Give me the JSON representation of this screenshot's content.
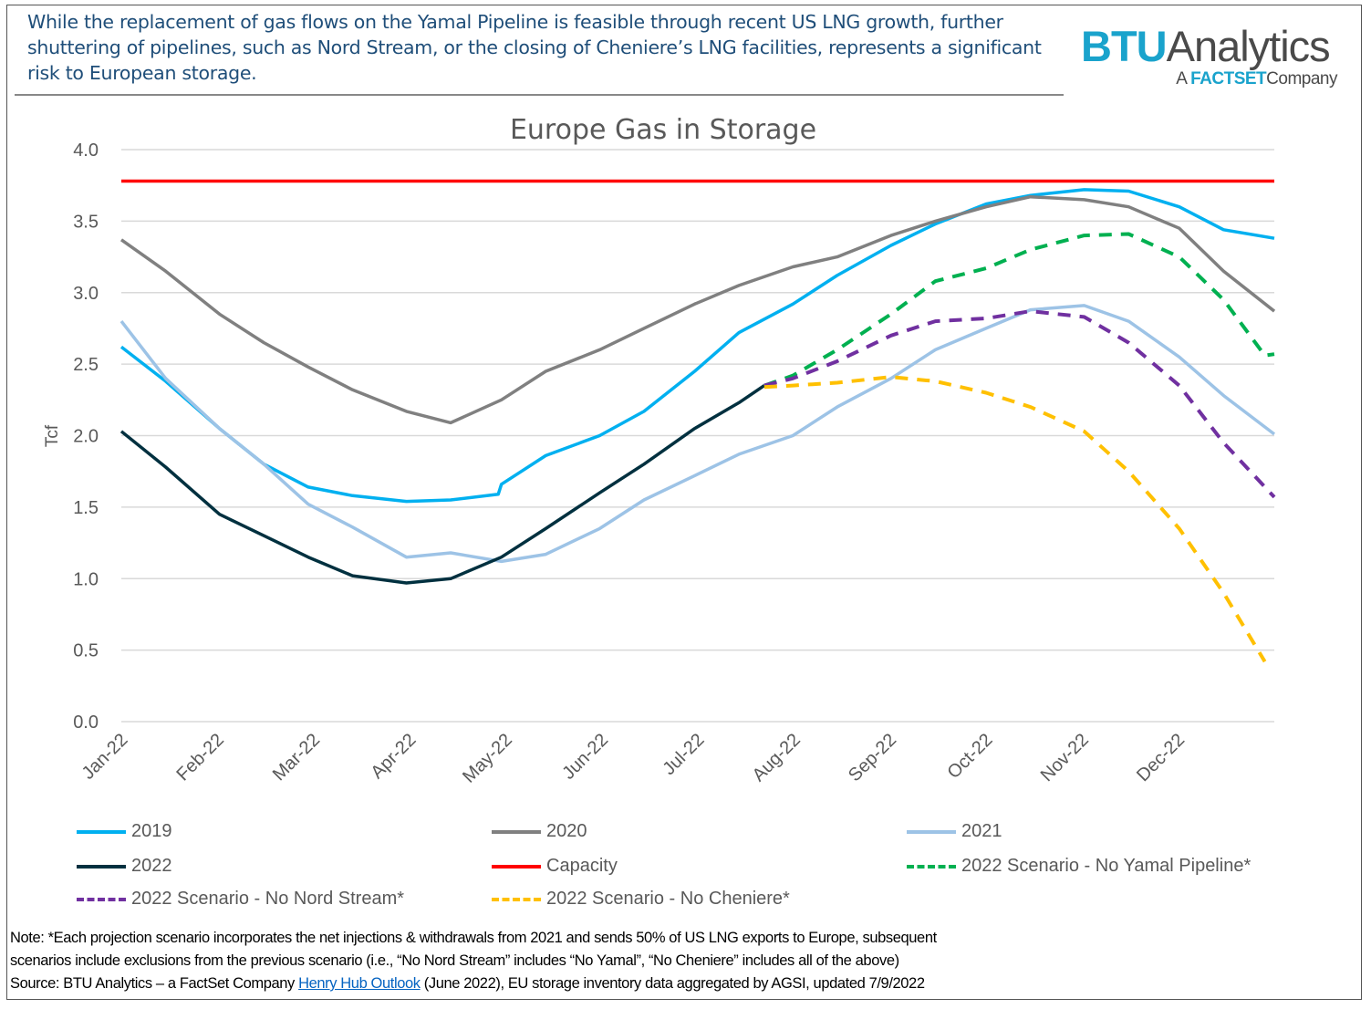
{
  "headline": "While the replacement of gas flows on the Yamal Pipeline is feasible through recent US LNG growth, further shuttering of pipelines, such as Nord Stream, or the closing of Cheniere’s LNG facilities, represents a significant risk to European storage.",
  "logo": {
    "btu": "BTU",
    "analytics": "Analytics",
    "prefix": "A",
    "factset": "FACTSET",
    "company": "Company"
  },
  "chart_data": {
    "type": "line",
    "title": "Europe Gas in Storage",
    "ylabel": "Tcf",
    "xlabel": "",
    "ylim": [
      0,
      4.0
    ],
    "yticks": [
      "0.0",
      "0.5",
      "1.0",
      "1.5",
      "2.0",
      "2.5",
      "3.0",
      "3.5",
      "4.0"
    ],
    "xticks": [
      "Jan-22",
      "Feb-22",
      "Mar-22",
      "Apr-22",
      "May-22",
      "Jun-22",
      "Jul-22",
      "Aug-22",
      "Sep-22",
      "Oct-22",
      "Nov-22",
      "Dec-22"
    ],
    "grid": "horizontal",
    "legend_placement": "bottom",
    "series": [
      {
        "name": "2019",
        "color": "#00b0f0",
        "dash": false,
        "x": [
          "2022-01-01",
          "2022-01-15",
          "2022-02-01",
          "2022-02-15",
          "2022-03-01",
          "2022-03-15",
          "2022-04-01",
          "2022-04-15",
          "2022-04-30",
          "2022-05-01",
          "2022-05-15",
          "2022-06-01",
          "2022-06-15",
          "2022-07-01",
          "2022-07-15",
          "2022-08-01",
          "2022-08-15",
          "2022-09-01",
          "2022-09-15",
          "2022-10-01",
          "2022-10-15",
          "2022-11-01",
          "2022-11-15",
          "2022-12-01",
          "2022-12-15",
          "2022-12-31"
        ],
        "y": [
          2.62,
          2.38,
          2.05,
          1.8,
          1.64,
          1.58,
          1.54,
          1.55,
          1.59,
          1.66,
          1.86,
          2.0,
          2.17,
          2.45,
          2.72,
          2.92,
          3.12,
          3.33,
          3.48,
          3.62,
          3.68,
          3.72,
          3.71,
          3.6,
          3.44,
          3.38
        ]
      },
      {
        "name": "2020",
        "color": "#808080",
        "dash": false,
        "x": [
          "2022-01-01",
          "2022-01-15",
          "2022-02-01",
          "2022-02-15",
          "2022-03-01",
          "2022-03-15",
          "2022-04-01",
          "2022-04-15",
          "2022-05-01",
          "2022-05-15",
          "2022-06-01",
          "2022-06-15",
          "2022-07-01",
          "2022-07-15",
          "2022-08-01",
          "2022-08-15",
          "2022-09-01",
          "2022-09-15",
          "2022-10-01",
          "2022-10-15",
          "2022-11-01",
          "2022-11-15",
          "2022-12-01",
          "2022-12-15",
          "2022-12-31"
        ],
        "y": [
          3.37,
          3.15,
          2.85,
          2.65,
          2.48,
          2.32,
          2.17,
          2.09,
          2.25,
          2.45,
          2.6,
          2.75,
          2.92,
          3.05,
          3.18,
          3.25,
          3.4,
          3.5,
          3.6,
          3.67,
          3.65,
          3.6,
          3.45,
          3.15,
          2.87
        ]
      },
      {
        "name": "2021",
        "color": "#9dc3e6",
        "dash": false,
        "x": [
          "2022-01-01",
          "2022-01-15",
          "2022-02-01",
          "2022-02-15",
          "2022-03-01",
          "2022-03-15",
          "2022-04-01",
          "2022-04-15",
          "2022-05-01",
          "2022-05-15",
          "2022-06-01",
          "2022-06-15",
          "2022-07-01",
          "2022-07-15",
          "2022-08-01",
          "2022-08-15",
          "2022-09-01",
          "2022-09-15",
          "2022-10-01",
          "2022-10-15",
          "2022-11-01",
          "2022-11-15",
          "2022-12-01",
          "2022-12-15",
          "2022-12-31"
        ],
        "y": [
          2.8,
          2.4,
          2.05,
          1.8,
          1.52,
          1.36,
          1.15,
          1.18,
          1.12,
          1.17,
          1.35,
          1.55,
          1.72,
          1.87,
          2.0,
          2.2,
          2.4,
          2.6,
          2.75,
          2.88,
          2.91,
          2.8,
          2.55,
          2.28,
          2.01
        ]
      },
      {
        "name": "2022",
        "color": "#00303f",
        "dash": false,
        "x": [
          "2022-01-01",
          "2022-01-15",
          "2022-02-01",
          "2022-02-15",
          "2022-03-01",
          "2022-03-15",
          "2022-04-01",
          "2022-04-15",
          "2022-05-01",
          "2022-05-15",
          "2022-06-01",
          "2022-06-15",
          "2022-07-01",
          "2022-07-15",
          "2022-07-23"
        ],
        "y": [
          2.03,
          1.78,
          1.45,
          1.3,
          1.15,
          1.02,
          0.97,
          1.0,
          1.15,
          1.35,
          1.6,
          1.8,
          2.05,
          2.23,
          2.35
        ]
      },
      {
        "name": "Capacity",
        "color": "#ff0000",
        "dash": false,
        "x": [
          "2022-01-01",
          "2022-12-31"
        ],
        "y": [
          3.78,
          3.78
        ]
      },
      {
        "name": "2022 Scenario - No Yamal Pipeline*",
        "color": "#00b050",
        "dash": true,
        "x": [
          "2022-07-23",
          "2022-08-01",
          "2022-08-15",
          "2022-09-01",
          "2022-09-15",
          "2022-10-01",
          "2022-10-15",
          "2022-11-01",
          "2022-11-15",
          "2022-12-01",
          "2022-12-15",
          "2022-12-28",
          "2022-12-31"
        ],
        "y": [
          2.35,
          2.42,
          2.6,
          2.85,
          3.08,
          3.17,
          3.3,
          3.4,
          3.41,
          3.25,
          2.95,
          2.56,
          2.57
        ]
      },
      {
        "name": "2022 Scenario - No Nord Stream*",
        "color": "#7030a0",
        "dash": true,
        "x": [
          "2022-07-23",
          "2022-08-01",
          "2022-08-15",
          "2022-09-01",
          "2022-09-15",
          "2022-10-01",
          "2022-10-15",
          "2022-11-01",
          "2022-11-15",
          "2022-12-01",
          "2022-12-15",
          "2022-12-31"
        ],
        "y": [
          2.35,
          2.4,
          2.52,
          2.7,
          2.8,
          2.82,
          2.87,
          2.83,
          2.65,
          2.35,
          1.95,
          1.57
        ]
      },
      {
        "name": "2022 Scenario - No Cheniere*",
        "color": "#ffc000",
        "dash": true,
        "x": [
          "2022-07-23",
          "2022-08-01",
          "2022-08-15",
          "2022-09-01",
          "2022-09-15",
          "2022-10-01",
          "2022-10-15",
          "2022-11-01",
          "2022-11-15",
          "2022-12-01",
          "2022-12-15",
          "2022-12-28"
        ],
        "y": [
          2.34,
          2.35,
          2.37,
          2.41,
          2.38,
          2.3,
          2.2,
          2.03,
          1.75,
          1.35,
          0.9,
          0.42
        ]
      }
    ]
  },
  "legend": [
    "2019",
    "2020",
    "2021",
    "2022",
    "Capacity",
    "2022 Scenario - No Yamal Pipeline*",
    "2022 Scenario - No Nord Stream*",
    "2022 Scenario - No Cheniere*"
  ],
  "note": {
    "line1": "Note:  *Each projection scenario incorporates the net  injections & withdrawals from 2021 and sends 50% of US LNG exports to Europe, subsequent",
    "line2": "scenarios include exclusions from the previous scenario (i.e., “No Nord Stream”  includes “No Yamal”, “No Cheniere”  includes all of the above)",
    "source_prefix": "Source: BTU Analytics – a FactSet Company ",
    "link": "Henry Hub Outlook",
    "source_suffix": " (June 2022), EU storage inventory data aggregated by AGSI, updated 7/9/2022"
  }
}
